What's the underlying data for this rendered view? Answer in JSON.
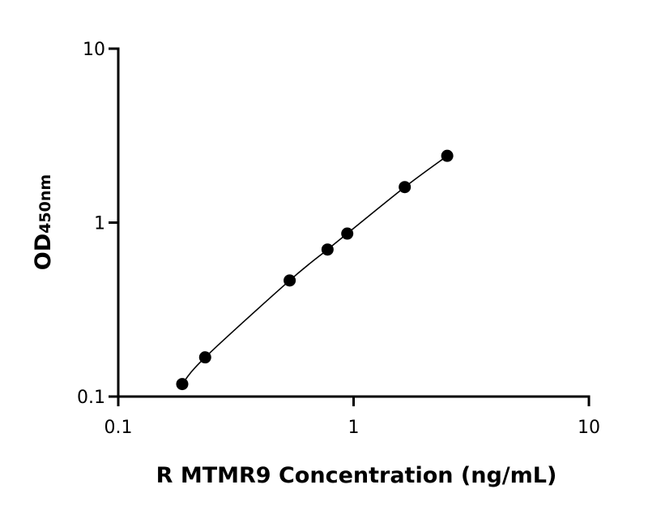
{
  "chart_data": {
    "type": "scatter",
    "xlabel": "R MTMR9 Concentration (ng/mL)",
    "ylabel_main": "OD",
    "ylabel_sub": "450nm",
    "x_scale": "log",
    "y_scale": "log",
    "xlim": [
      0.1,
      10
    ],
    "ylim": [
      0.1,
      10
    ],
    "x_ticks": [
      {
        "value": 0.1,
        "label": "0.1"
      },
      {
        "value": 1,
        "label": "1"
      },
      {
        "value": 10,
        "label": "10"
      }
    ],
    "y_ticks": [
      {
        "value": 0.1,
        "label": "0.1"
      },
      {
        "value": 1,
        "label": "1"
      },
      {
        "value": 10,
        "label": "10"
      }
    ],
    "grid": false,
    "series": [
      {
        "x": [
          0.187,
          0.234,
          0.535,
          0.775,
          0.94,
          1.65,
          2.5
        ],
        "y": [
          0.118,
          0.168,
          0.465,
          0.7,
          0.865,
          1.6,
          2.42
        ],
        "fit_curve": true
      }
    ],
    "colors": {
      "points": "#000000",
      "line": "#000000",
      "axes": "#000000"
    }
  }
}
